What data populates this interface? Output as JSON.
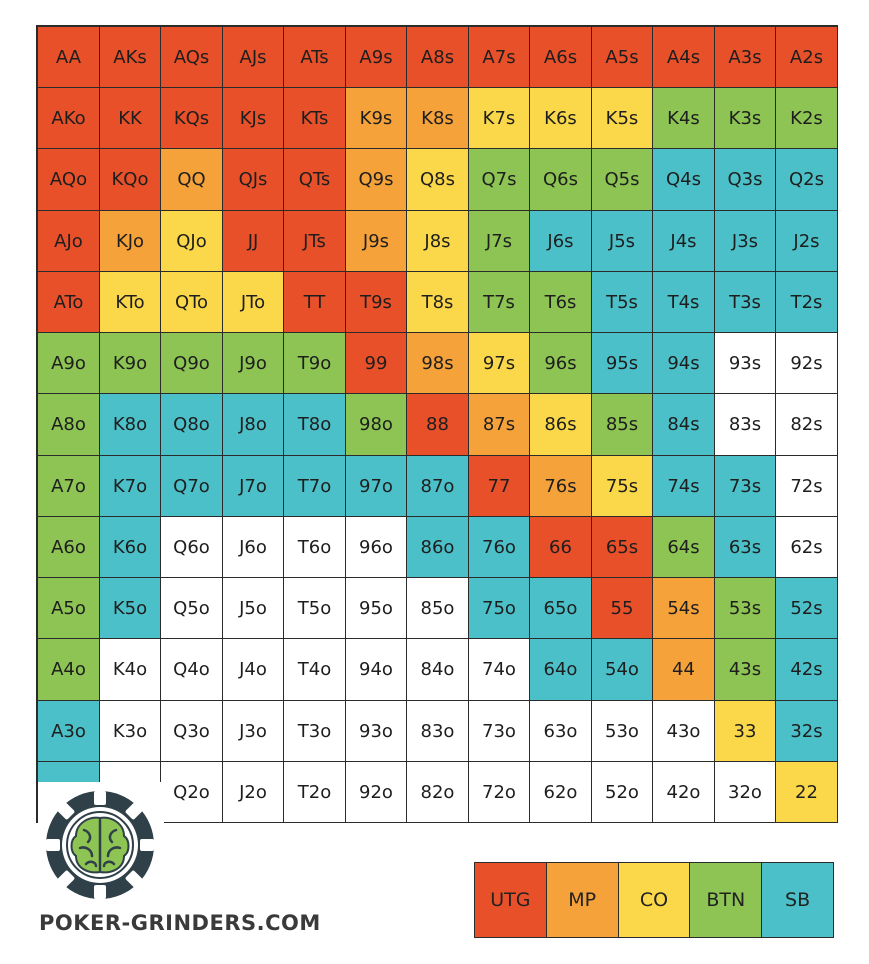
{
  "colors": {
    "UTG": "#e8502a",
    "MP": "#f5a23a",
    "CO": "#fbd84a",
    "BTN": "#8dc453",
    "SB": "#4bc0c8",
    "none": "#ffffff"
  },
  "chart_data": {
    "type": "heatmap",
    "ranks": [
      "A",
      "K",
      "Q",
      "J",
      "T",
      "9",
      "8",
      "7",
      "6",
      "5",
      "4",
      "3",
      "2"
    ],
    "rows": [
      [
        "AA",
        "AKs",
        "AQs",
        "AJs",
        "ATs",
        "A9s",
        "A8s",
        "A7s",
        "A6s",
        "A5s",
        "A4s",
        "A3s",
        "A2s"
      ],
      [
        "AKo",
        "KK",
        "KQs",
        "KJs",
        "KTs",
        "K9s",
        "K8s",
        "K7s",
        "K6s",
        "K5s",
        "K4s",
        "K3s",
        "K2s"
      ],
      [
        "AQo",
        "KQo",
        "QQ",
        "QJs",
        "QTs",
        "Q9s",
        "Q8s",
        "Q7s",
        "Q6s",
        "Q5s",
        "Q4s",
        "Q3s",
        "Q2s"
      ],
      [
        "AJo",
        "KJo",
        "QJo",
        "JJ",
        "JTs",
        "J9s",
        "J8s",
        "J7s",
        "J6s",
        "J5s",
        "J4s",
        "J3s",
        "J2s"
      ],
      [
        "ATo",
        "KTo",
        "QTo",
        "JTo",
        "TT",
        "T9s",
        "T8s",
        "T7s",
        "T6s",
        "T5s",
        "T4s",
        "T3s",
        "T2s"
      ],
      [
        "A9o",
        "K9o",
        "Q9o",
        "J9o",
        "T9o",
        "99",
        "98s",
        "97s",
        "96s",
        "95s",
        "94s",
        "93s",
        "92s"
      ],
      [
        "A8o",
        "K8o",
        "Q8o",
        "J8o",
        "T8o",
        "98o",
        "88",
        "87s",
        "86s",
        "85s",
        "84s",
        "83s",
        "82s"
      ],
      [
        "A7o",
        "K7o",
        "Q7o",
        "J7o",
        "T7o",
        "97o",
        "87o",
        "77",
        "76s",
        "75s",
        "74s",
        "73s",
        "72s"
      ],
      [
        "A6o",
        "K6o",
        "Q6o",
        "J6o",
        "T6o",
        "96o",
        "86o",
        "76o",
        "66",
        "65s",
        "64s",
        "63s",
        "62s"
      ],
      [
        "A5o",
        "K5o",
        "Q5o",
        "J5o",
        "T5o",
        "95o",
        "85o",
        "75o",
        "65o",
        "55",
        "54s",
        "53s",
        "52s"
      ],
      [
        "A4o",
        "K4o",
        "Q4o",
        "J4o",
        "T4o",
        "94o",
        "84o",
        "74o",
        "64o",
        "54o",
        "44",
        "43s",
        "42s"
      ],
      [
        "A3o",
        "K3o",
        "Q3o",
        "J3o",
        "T3o",
        "93o",
        "83o",
        "73o",
        "63o",
        "53o",
        "43o",
        "33",
        "32s"
      ],
      [
        "",
        "",
        "Q2o",
        "J2o",
        "T2o",
        "92o",
        "82o",
        "72o",
        "62o",
        "52o",
        "42o",
        "32o",
        "22"
      ]
    ],
    "positions": [
      [
        "UTG",
        "UTG",
        "UTG",
        "UTG",
        "UTG",
        "UTG",
        "UTG",
        "UTG",
        "UTG",
        "UTG",
        "UTG",
        "UTG",
        "UTG"
      ],
      [
        "UTG",
        "UTG",
        "UTG",
        "UTG",
        "UTG",
        "MP",
        "MP",
        "CO",
        "CO",
        "CO",
        "BTN",
        "BTN",
        "BTN"
      ],
      [
        "UTG",
        "UTG",
        "MP",
        "UTG",
        "UTG",
        "MP",
        "CO",
        "BTN",
        "BTN",
        "BTN",
        "SB",
        "SB",
        "SB"
      ],
      [
        "UTG",
        "MP",
        "CO",
        "UTG",
        "UTG",
        "MP",
        "CO",
        "BTN",
        "SB",
        "SB",
        "SB",
        "SB",
        "SB"
      ],
      [
        "UTG",
        "CO",
        "CO",
        "CO",
        "UTG",
        "UTG",
        "CO",
        "BTN",
        "BTN",
        "SB",
        "SB",
        "SB",
        "SB"
      ],
      [
        "BTN",
        "BTN",
        "BTN",
        "BTN",
        "BTN",
        "UTG",
        "MP",
        "CO",
        "BTN",
        "SB",
        "SB",
        "none",
        "none"
      ],
      [
        "BTN",
        "SB",
        "SB",
        "SB",
        "SB",
        "BTN",
        "UTG",
        "MP",
        "CO",
        "BTN",
        "SB",
        "none",
        "none"
      ],
      [
        "BTN",
        "SB",
        "SB",
        "SB",
        "SB",
        "SB",
        "SB",
        "UTG",
        "MP",
        "CO",
        "SB",
        "SB",
        "none"
      ],
      [
        "BTN",
        "SB",
        "none",
        "none",
        "none",
        "none",
        "SB",
        "SB",
        "UTG",
        "UTG",
        "BTN",
        "SB",
        "none"
      ],
      [
        "BTN",
        "SB",
        "none",
        "none",
        "none",
        "none",
        "none",
        "SB",
        "SB",
        "UTG",
        "MP",
        "BTN",
        "SB"
      ],
      [
        "BTN",
        "none",
        "none",
        "none",
        "none",
        "none",
        "none",
        "none",
        "SB",
        "SB",
        "MP",
        "BTN",
        "SB"
      ],
      [
        "SB",
        "none",
        "none",
        "none",
        "none",
        "none",
        "none",
        "none",
        "none",
        "none",
        "none",
        "CO",
        "SB"
      ],
      [
        "SB",
        "none",
        "none",
        "none",
        "none",
        "none",
        "none",
        "none",
        "none",
        "none",
        "none",
        "none",
        "CO"
      ]
    ],
    "legend": [
      "UTG",
      "MP",
      "CO",
      "BTN",
      "SB"
    ]
  },
  "brand": {
    "text": "POKER-GRINDERS.COM",
    "logo_icon": "poker-chip-brain-icon"
  }
}
